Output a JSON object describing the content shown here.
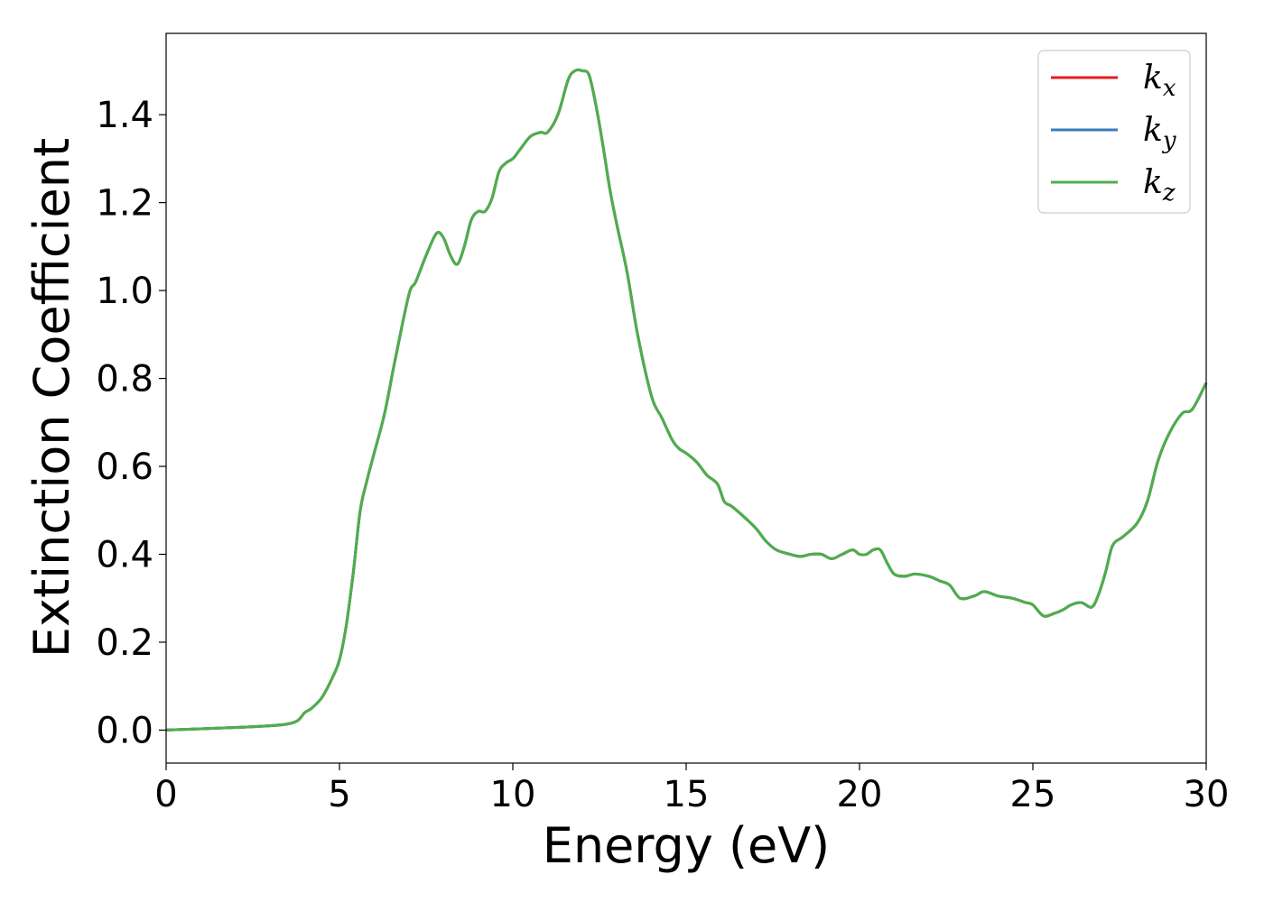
{
  "chart_data": {
    "type": "line",
    "title": "",
    "xlabel": "Energy (eV)",
    "ylabel": "Extinction Coefficient",
    "xlim": [
      0,
      30
    ],
    "ylim": [
      -0.075,
      1.585
    ],
    "xticks": [
      0,
      5,
      10,
      15,
      20,
      25,
      30
    ],
    "xtick_labels": [
      "0",
      "5",
      "10",
      "15",
      "20",
      "25",
      "30"
    ],
    "yticks": [
      0.0,
      0.2,
      0.4,
      0.6,
      0.8,
      1.0,
      1.2,
      1.4
    ],
    "ytick_labels": [
      "0.0",
      "0.2",
      "0.4",
      "0.6",
      "0.8",
      "1.0",
      "1.2",
      "1.4"
    ],
    "grid": false,
    "legend_position": "top-right",
    "series": [
      {
        "name": "k",
        "subscript": "x",
        "color": "#e41a1c"
      },
      {
        "name": "k",
        "subscript": "y",
        "color": "#377eb8"
      },
      {
        "name": "k",
        "subscript": "z",
        "color": "#4daf4a"
      }
    ],
    "x": [
      0,
      1,
      2,
      3,
      3.5,
      3.8,
      4.0,
      4.2,
      4.5,
      4.8,
      5.0,
      5.2,
      5.4,
      5.6,
      5.8,
      6.0,
      6.3,
      6.6,
      7.0,
      7.2,
      7.5,
      7.8,
      8.0,
      8.2,
      8.4,
      8.6,
      8.8,
      9.0,
      9.2,
      9.4,
      9.6,
      9.8,
      10.0,
      10.2,
      10.5,
      10.8,
      11.0,
      11.3,
      11.6,
      11.8,
      12.0,
      12.2,
      12.4,
      12.6,
      12.8,
      13.0,
      13.3,
      13.6,
      14.0,
      14.3,
      14.6,
      14.8,
      15.0,
      15.3,
      15.6,
      15.9,
      16.1,
      16.3,
      16.6,
      17.0,
      17.3,
      17.6,
      18.0,
      18.3,
      18.6,
      18.9,
      19.2,
      19.5,
      19.8,
      20.0,
      20.2,
      20.4,
      20.6,
      20.8,
      21.0,
      21.3,
      21.6,
      22.0,
      22.3,
      22.6,
      22.9,
      23.3,
      23.6,
      24.0,
      24.4,
      24.8,
      25.0,
      25.3,
      25.6,
      25.9,
      26.1,
      26.4,
      26.7,
      26.9,
      27.1,
      27.3,
      27.6,
      28.0,
      28.3,
      28.6,
      28.9,
      29.3,
      29.6,
      30.0
    ],
    "values": [
      0.0,
      0.003,
      0.006,
      0.01,
      0.014,
      0.022,
      0.04,
      0.05,
      0.075,
      0.12,
      0.16,
      0.24,
      0.36,
      0.5,
      0.57,
      0.63,
      0.72,
      0.84,
      0.99,
      1.02,
      1.08,
      1.13,
      1.12,
      1.08,
      1.06,
      1.1,
      1.16,
      1.18,
      1.18,
      1.21,
      1.27,
      1.29,
      1.3,
      1.32,
      1.35,
      1.36,
      1.36,
      1.4,
      1.48,
      1.5,
      1.5,
      1.49,
      1.42,
      1.33,
      1.23,
      1.15,
      1.04,
      0.9,
      0.76,
      0.71,
      0.66,
      0.64,
      0.63,
      0.61,
      0.58,
      0.56,
      0.52,
      0.51,
      0.49,
      0.46,
      0.43,
      0.41,
      0.4,
      0.395,
      0.4,
      0.4,
      0.39,
      0.4,
      0.41,
      0.4,
      0.4,
      0.41,
      0.41,
      0.38,
      0.355,
      0.35,
      0.355,
      0.35,
      0.34,
      0.33,
      0.3,
      0.305,
      0.315,
      0.305,
      0.3,
      0.29,
      0.285,
      0.26,
      0.265,
      0.275,
      0.285,
      0.29,
      0.28,
      0.31,
      0.36,
      0.42,
      0.44,
      0.47,
      0.52,
      0.61,
      0.67,
      0.72,
      0.73,
      0.79
    ]
  }
}
